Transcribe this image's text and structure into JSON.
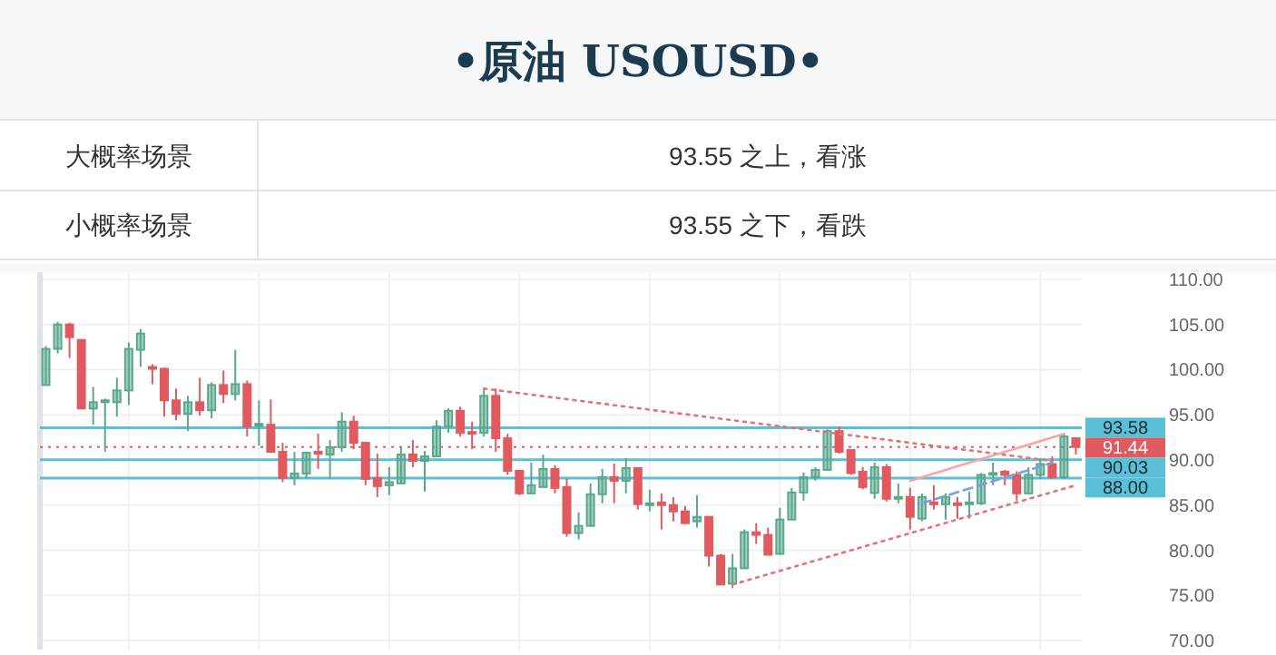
{
  "chart_data": {
    "type": "candlestick",
    "title": "•原油 USOUSD•",
    "annotations": [
      "大概率场景",
      "93.55 之上，看涨",
      "小概率场景",
      "93.55 之下，看跌"
    ],
    "categories": [
      null,
      null,
      null,
      null,
      null,
      null,
      null,
      null,
      null,
      null,
      null,
      null,
      null,
      null,
      null,
      null,
      null,
      null,
      null,
      null,
      null,
      null,
      null,
      null,
      null,
      null,
      null,
      null,
      null,
      null,
      null,
      null,
      null,
      null,
      null,
      null,
      null,
      null,
      null,
      null,
      null,
      null,
      null,
      null,
      null,
      null,
      null,
      null,
      null,
      null,
      null,
      null,
      null,
      null,
      null,
      null,
      null,
      null,
      null,
      null,
      null,
      null,
      null,
      null,
      null,
      null,
      null,
      null,
      null,
      null,
      null,
      null,
      null,
      null,
      null,
      null,
      null,
      null,
      null,
      null,
      null,
      null,
      null,
      null,
      null,
      null,
      null,
      null
    ],
    "ohlc": [
      [
        98.3,
        102.6,
        98.3,
        102.3
      ],
      [
        102.3,
        105.3,
        101.8,
        105.0
      ],
      [
        105.0,
        105.2,
        101.3,
        103.6
      ],
      [
        103.3,
        103.3,
        95.7,
        95.7
      ],
      [
        95.7,
        98.1,
        93.9,
        96.4
      ],
      [
        96.5,
        96.8,
        90.9,
        96.6
      ],
      [
        96.4,
        99.1,
        94.8,
        97.7
      ],
      [
        97.7,
        103.0,
        96.1,
        102.3
      ],
      [
        102.2,
        104.5,
        100.3,
        104.0
      ],
      [
        100.3,
        100.6,
        98.4,
        100.1
      ],
      [
        100.1,
        100.2,
        94.8,
        96.6
      ],
      [
        96.6,
        97.9,
        94.4,
        95.1
      ],
      [
        95.1,
        97.1,
        93.2,
        96.4
      ],
      [
        96.4,
        99.1,
        94.9,
        95.5
      ],
      [
        95.5,
        98.6,
        94.6,
        98.3
      ],
      [
        98.3,
        99.9,
        96.3,
        97.3
      ],
      [
        97.3,
        102.2,
        96.6,
        98.4
      ],
      [
        98.4,
        98.8,
        92.6,
        93.7
      ],
      [
        93.9,
        96.6,
        91.6,
        94.0
      ],
      [
        93.9,
        96.7,
        90.8,
        90.9
      ],
      [
        90.9,
        91.9,
        87.55,
        88.0
      ],
      [
        88.0,
        90.9,
        87.2,
        88.5
      ],
      [
        88.5,
        90.9,
        87.9,
        90.8
      ],
      [
        90.9,
        92.9,
        89.0,
        90.7
      ],
      [
        90.6,
        92.2,
        87.9,
        91.4
      ],
      [
        91.4,
        95.3,
        90.9,
        94.25
      ],
      [
        94.25,
        94.9,
        91.2,
        91.9
      ],
      [
        91.9,
        91.9,
        87.2,
        87.9
      ],
      [
        88.0,
        90.7,
        85.9,
        87.1
      ],
      [
        87.2,
        89.2,
        86.1,
        87.55
      ],
      [
        87.4,
        91.4,
        87.4,
        90.6
      ],
      [
        90.6,
        92.2,
        89.2,
        89.9
      ],
      [
        89.9,
        91.0,
        86.5,
        90.4
      ],
      [
        90.4,
        94.4,
        90.4,
        93.7
      ],
      [
        93.7,
        95.7,
        93.0,
        95.45
      ],
      [
        95.45,
        95.9,
        92.6,
        93.0
      ],
      [
        93.1,
        94.25,
        91.2,
        93.0
      ],
      [
        93.0,
        97.9,
        92.6,
        97.1
      ],
      [
        97.1,
        97.9,
        90.9,
        92.4
      ],
      [
        92.4,
        92.9,
        88.35,
        88.8
      ],
      [
        88.8,
        88.8,
        86.1,
        86.3
      ],
      [
        86.3,
        89.7,
        86.3,
        87.2
      ],
      [
        87.0,
        90.6,
        87.0,
        89.0
      ],
      [
        89.0,
        89.4,
        86.3,
        86.9
      ],
      [
        87.0,
        87.9,
        81.5,
        81.9
      ],
      [
        81.9,
        84.2,
        81.2,
        82.7
      ],
      [
        82.7,
        87.4,
        82.7,
        86.2
      ],
      [
        86.2,
        89.0,
        85.2,
        88.1
      ],
      [
        88.1,
        89.6,
        85.2,
        87.7
      ],
      [
        87.7,
        90.2,
        86.3,
        89.1
      ],
      [
        89.1,
        89.1,
        84.5,
        85.1
      ],
      [
        85.1,
        86.7,
        84.3,
        85.2
      ],
      [
        85.3,
        86.3,
        82.3,
        85.0
      ],
      [
        85.0,
        85.9,
        83.2,
        84.3
      ],
      [
        84.3,
        84.9,
        82.9,
        83.0
      ],
      [
        83.2,
        86.1,
        82.5,
        83.7
      ],
      [
        83.7,
        83.7,
        78.2,
        79.4
      ],
      [
        79.4,
        79.6,
        76.2,
        76.2
      ],
      [
        76.3,
        79.6,
        75.8,
        78.0
      ],
      [
        78.0,
        82.3,
        78.0,
        82.0
      ],
      [
        82.0,
        83.0,
        80.7,
        81.7
      ],
      [
        81.7,
        82.5,
        79.5,
        79.5
      ],
      [
        79.6,
        84.7,
        79.5,
        83.4
      ],
      [
        83.4,
        86.9,
        83.4,
        86.4
      ],
      [
        86.4,
        88.6,
        85.5,
        88.1
      ],
      [
        88.1,
        89.2,
        87.7,
        88.9
      ],
      [
        88.9,
        93.4,
        88.9,
        93.2
      ],
      [
        93.2,
        93.7,
        90.7,
        90.9
      ],
      [
        91.1,
        91.1,
        88.35,
        88.55
      ],
      [
        88.7,
        89.2,
        86.75,
        87.0
      ],
      [
        86.35,
        89.7,
        85.7,
        89.2
      ],
      [
        89.2,
        89.55,
        85.4,
        85.7
      ],
      [
        85.7,
        87.4,
        85.2,
        85.9
      ],
      [
        85.9,
        86.9,
        82.3,
        83.7
      ],
      [
        83.5,
        86.3,
        83.2,
        85.9
      ],
      [
        85.3,
        87.2,
        84.5,
        85.2
      ],
      [
        85.1,
        86.3,
        83.4,
        85.9
      ],
      [
        85.2,
        85.9,
        83.5,
        85.0
      ],
      [
        85.1,
        86.5,
        83.5,
        85.3
      ],
      [
        85.2,
        88.55,
        85.0,
        88.35
      ],
      [
        88.35,
        89.7,
        87.2,
        88.55
      ],
      [
        88.7,
        88.9,
        87.2,
        88.35
      ],
      [
        88.35,
        88.75,
        85.5,
        86.3
      ],
      [
        86.3,
        89.2,
        86.3,
        88.35
      ],
      [
        88.35,
        90.2,
        87.9,
        89.55
      ],
      [
        89.55,
        90.4,
        87.9,
        88.1
      ],
      [
        88.1,
        92.9,
        87.9,
        92.6
      ],
      [
        92.4,
        92.4,
        90.6,
        91.44
      ]
    ],
    "colors": [
      "#5aa88c",
      "#5aa88c",
      "#e05a5f",
      "#e05a5f",
      "#5aa88c",
      "#5aa88c",
      "#5aa88c",
      "#5aa88c",
      "#5aa88c",
      "#e05a5f",
      "#e05a5f",
      "#e05a5f",
      "#5aa88c",
      "#e05a5f",
      "#5aa88c",
      "#e05a5f",
      "#5aa88c",
      "#e05a5f",
      "#5aa88c",
      "#e05a5f",
      "#e05a5f",
      "#5aa88c",
      "#5aa88c",
      "#e05a5f",
      "#5aa88c",
      "#5aa88c",
      "#e05a5f",
      "#e05a5f",
      "#e05a5f",
      "#5aa88c",
      "#5aa88c",
      "#e05a5f",
      "#5aa88c",
      "#5aa88c",
      "#5aa88c",
      "#e05a5f",
      "#e05a5f",
      "#5aa88c",
      "#e05a5f",
      "#e05a5f",
      "#e05a5f",
      "#5aa88c",
      "#5aa88c",
      "#e05a5f",
      "#e05a5f",
      "#5aa88c",
      "#5aa88c",
      "#5aa88c",
      "#e05a5f",
      "#5aa88c",
      "#e05a5f",
      "#5aa88c",
      "#e05a5f",
      "#e05a5f",
      "#e05a5f",
      "#5aa88c",
      "#e05a5f",
      "#e05a5f",
      "#5aa88c",
      "#5aa88c",
      "#e05a5f",
      "#e05a5f",
      "#5aa88c",
      "#5aa88c",
      "#5aa88c",
      "#5aa88c",
      "#5aa88c",
      "#e05a5f",
      "#e05a5f",
      "#e05a5f",
      "#5aa88c",
      "#e05a5f",
      "#5aa88c",
      "#e05a5f",
      "#5aa88c",
      "#e05a5f",
      "#5aa88c",
      "#e05a5f",
      "#5aa88c",
      "#5aa88c",
      "#5aa88c",
      "#e05a5f",
      "#e05a5f",
      "#5aa88c",
      "#5aa88c",
      "#e05a5f",
      "#5aa88c",
      "#e05a5f"
    ],
    "series": [
      {
        "type": "line",
        "values": [
          null,
          null,
          null,
          null,
          null,
          null,
          null,
          null,
          null,
          null,
          null,
          null,
          null,
          null,
          null,
          null,
          null,
          null,
          null,
          null,
          null,
          null,
          null,
          null,
          null,
          null,
          null,
          null,
          null,
          null,
          null,
          null,
          null,
          null,
          null,
          null,
          null,
          97.9,
          null,
          null,
          null,
          null,
          null,
          null,
          null,
          null,
          null,
          null,
          null,
          null,
          null,
          null,
          null,
          null,
          null,
          null,
          null,
          null,
          null,
          null,
          null,
          null,
          null,
          null,
          null,
          null,
          null,
          null,
          null,
          null,
          null,
          null,
          null,
          null,
          null,
          null,
          null,
          null,
          null,
          null,
          null,
          null,
          null,
          null,
          null,
          89.9,
          null,
          null
        ],
        "color": "#e57373",
        "line_style": "dotted"
      },
      {
        "type": "line",
        "values": [
          null,
          null,
          null,
          null,
          null,
          null,
          null,
          null,
          null,
          null,
          null,
          null,
          null,
          null,
          null,
          null,
          null,
          null,
          null,
          null,
          null,
          null,
          null,
          null,
          null,
          null,
          null,
          null,
          null,
          null,
          null,
          null,
          null,
          null,
          null,
          null,
          null,
          null,
          null,
          null,
          null,
          null,
          null,
          null,
          null,
          null,
          null,
          null,
          null,
          null,
          null,
          null,
          null,
          null,
          null,
          null,
          null,
          null,
          76.2,
          null,
          null,
          null,
          null,
          null,
          null,
          null,
          null,
          null,
          null,
          null,
          null,
          null,
          null,
          null,
          null,
          null,
          null,
          null,
          null,
          null,
          null,
          null,
          null,
          null,
          null,
          null,
          null,
          87.2
        ],
        "color": "#e57373",
        "line_style": "dotted"
      },
      {
        "type": "line",
        "values": [
          null,
          null,
          null,
          null,
          null,
          null,
          null,
          null,
          null,
          null,
          null,
          null,
          null,
          null,
          null,
          null,
          null,
          null,
          null,
          null,
          null,
          null,
          null,
          null,
          null,
          null,
          null,
          null,
          null,
          null,
          null,
          null,
          null,
          null,
          null,
          null,
          null,
          null,
          null,
          null,
          null,
          null,
          null,
          null,
          null,
          null,
          null,
          null,
          null,
          null,
          null,
          null,
          null,
          null,
          null,
          null,
          null,
          null,
          null,
          null,
          null,
          null,
          null,
          null,
          null,
          null,
          null,
          null,
          null,
          null,
          null,
          null,
          null,
          87.7,
          null,
          null,
          null,
          null,
          null,
          null,
          null,
          null,
          null,
          null,
          null,
          null,
          92.9,
          null
        ],
        "color": "#f4a6a6",
        "line_style": "solid"
      },
      {
        "type": "line",
        "values": [
          null,
          null,
          null,
          null,
          null,
          null,
          null,
          null,
          null,
          null,
          null,
          null,
          null,
          null,
          null,
          null,
          null,
          null,
          null,
          null,
          null,
          null,
          null,
          null,
          null,
          null,
          null,
          null,
          null,
          null,
          null,
          null,
          null,
          null,
          null,
          null,
          null,
          null,
          null,
          null,
          null,
          null,
          null,
          null,
          null,
          null,
          null,
          null,
          null,
          null,
          null,
          null,
          null,
          null,
          null,
          null,
          null,
          null,
          null,
          null,
          null,
          null,
          null,
          null,
          null,
          null,
          null,
          null,
          null,
          null,
          null,
          null,
          null,
          null,
          85.2,
          null,
          null,
          null,
          null,
          null,
          null,
          null,
          null,
          null,
          null,
          89.7,
          null,
          null
        ],
        "color": "#7b9fe0",
        "line_style": "dashed"
      }
    ],
    "ylim": [
      69,
      110.8
    ],
    "yticks": [
      {
        "value": 70,
        "label": "70.00"
      },
      {
        "value": 75,
        "label": "75.00"
      },
      {
        "value": 80,
        "label": "80.00"
      },
      {
        "value": 85,
        "label": "85.00"
      },
      {
        "value": 90,
        "label": "90.00"
      },
      {
        "value": 95,
        "label": "95.00"
      },
      {
        "value": 100,
        "label": "100.00"
      },
      {
        "value": 105,
        "label": "105.00"
      },
      {
        "value": 110,
        "label": "110.00"
      }
    ],
    "tick_labels": "y",
    "grid": true,
    "ref_lines": [
      {
        "axis": "y",
        "value": 93.58,
        "label": "93.58",
        "color": "#5bbfd6",
        "line_style": "solid"
      },
      {
        "axis": "y",
        "value": 91.44,
        "label": "91.44",
        "color": "#e05a5f",
        "line_style": "dotted"
      },
      {
        "axis": "y",
        "value": 90.03,
        "label": "90.03",
        "color": "#5bbfd6",
        "line_style": "solid"
      },
      {
        "axis": "y",
        "value": 88.0,
        "label": "88.00",
        "color": "#5bbfd6",
        "line_style": "solid"
      }
    ]
  }
}
